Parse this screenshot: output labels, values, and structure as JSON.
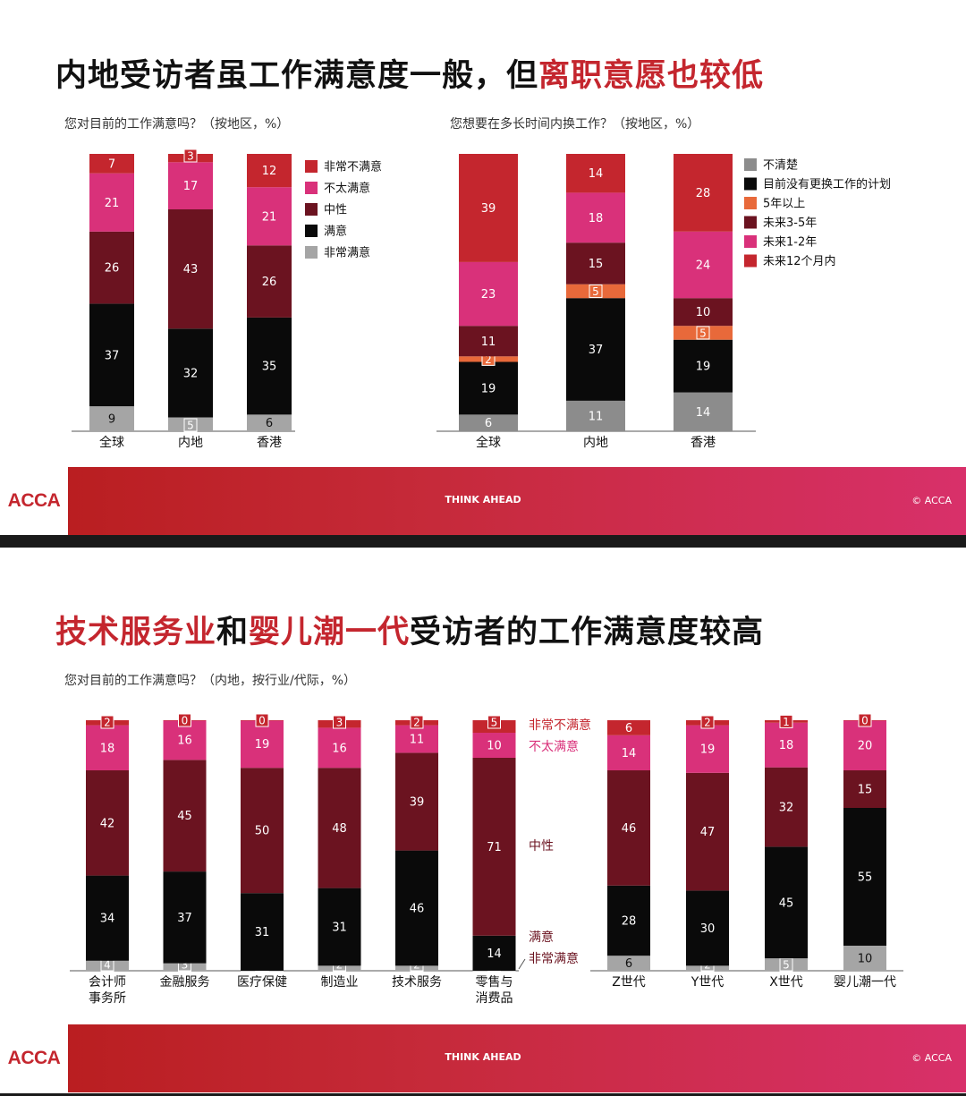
{
  "slide1": {
    "title_part1": "内地受访者虽工作满意度一般，但",
    "title_highlight": "离职意愿也较低",
    "footer": {
      "logo": "ACCA",
      "tagline": "THINK AHEAD",
      "copyright": "© ACCA"
    }
  },
  "slide2": {
    "title_hl1": "技术服务业",
    "title_mid": "和",
    "title_hl2": "婴儿潮一代",
    "title_end": "受访者的工作满意度较高",
    "footer": {
      "logo": "ACCA",
      "tagline": "THINK AHEAD",
      "copyright": "© ACCA"
    }
  },
  "colors": {
    "very_dissatisfied": "#c4262e",
    "dissatisfied": "#d9317a",
    "neutral": "#6b1320",
    "satisfied": "#0a0a0a",
    "very_satisfied": "#a5a5a5",
    "unknown": "#8c8c8c",
    "five_plus": "#e8693a"
  },
  "chart_data": [
    {
      "type": "bar",
      "stacked": true,
      "title": "您对目前的工作满意吗？（按地区，%）",
      "categories": [
        "全球",
        "内地",
        "香港"
      ],
      "series": [
        {
          "name": "非常满意",
          "values": [
            9,
            5,
            6
          ]
        },
        {
          "name": "满意",
          "values": [
            37,
            32,
            35
          ]
        },
        {
          "name": "中性",
          "values": [
            26,
            43,
            26
          ]
        },
        {
          "name": "不太满意",
          "values": [
            21,
            17,
            21
          ]
        },
        {
          "name": "非常不满意",
          "values": [
            7,
            3,
            12
          ]
        }
      ],
      "legend_order": [
        "非常不满意",
        "不太满意",
        "中性",
        "满意",
        "非常满意"
      ],
      "legend": "right"
    },
    {
      "type": "bar",
      "stacked": true,
      "title": "您想要在多长时间内换工作？（按地区，%）",
      "categories": [
        "全球",
        "内地",
        "香港"
      ],
      "series": [
        {
          "name": "不清楚",
          "values": [
            6,
            11,
            14
          ]
        },
        {
          "name": "目前没有更换工作的计划",
          "values": [
            19,
            37,
            19
          ]
        },
        {
          "name": "5年以上",
          "values": [
            2,
            5,
            5
          ]
        },
        {
          "name": "未来3-5年",
          "values": [
            11,
            15,
            10
          ]
        },
        {
          "name": "未来1-2年",
          "values": [
            23,
            18,
            24
          ]
        },
        {
          "name": "未来12个月内",
          "values": [
            39,
            14,
            28
          ]
        }
      ],
      "legend_order": [
        "不清楚",
        "目前没有更换工作的计划",
        "5年以上",
        "未来3-5年",
        "未来1-2年",
        "未来12个月内"
      ],
      "legend": "right"
    },
    {
      "type": "bar",
      "stacked": true,
      "title": "您对目前的工作满意吗？（内地，按行业/代际，%）",
      "categories": [
        "会计师事务所",
        "金融服务",
        "医疗保健",
        "制造业",
        "技术服务",
        "零售与消费品"
      ],
      "category_lines": [
        [
          "会计师",
          "事务所"
        ],
        [
          "金融服务"
        ],
        [
          "医疗保健"
        ],
        [
          "制造业"
        ],
        [
          "技术服务"
        ],
        [
          "零售与",
          "消费品"
        ]
      ],
      "series": [
        {
          "name": "非常满意",
          "values": [
            4,
            3,
            0,
            2,
            2,
            0
          ]
        },
        {
          "name": "满意",
          "values": [
            34,
            37,
            31,
            31,
            46,
            14
          ]
        },
        {
          "name": "中性",
          "values": [
            42,
            45,
            50,
            48,
            39,
            71
          ]
        },
        {
          "name": "不太满意",
          "values": [
            18,
            16,
            19,
            16,
            11,
            10
          ]
        },
        {
          "name": "非常不满意",
          "values": [
            2,
            0,
            0,
            3,
            2,
            5
          ]
        }
      ],
      "legend": "inline-right"
    },
    {
      "type": "bar",
      "stacked": true,
      "categories": [
        "Z世代",
        "Y世代",
        "X世代",
        "婴儿潮一代"
      ],
      "series": [
        {
          "name": "非常满意",
          "values": [
            6,
            2,
            5,
            10
          ]
        },
        {
          "name": "满意",
          "values": [
            28,
            30,
            45,
            55
          ]
        },
        {
          "name": "中性",
          "values": [
            46,
            47,
            32,
            15
          ]
        },
        {
          "name": "不太满意",
          "values": [
            14,
            19,
            18,
            20
          ]
        },
        {
          "name": "非常不满意",
          "values": [
            6,
            2,
            1,
            0
          ]
        }
      ]
    }
  ]
}
